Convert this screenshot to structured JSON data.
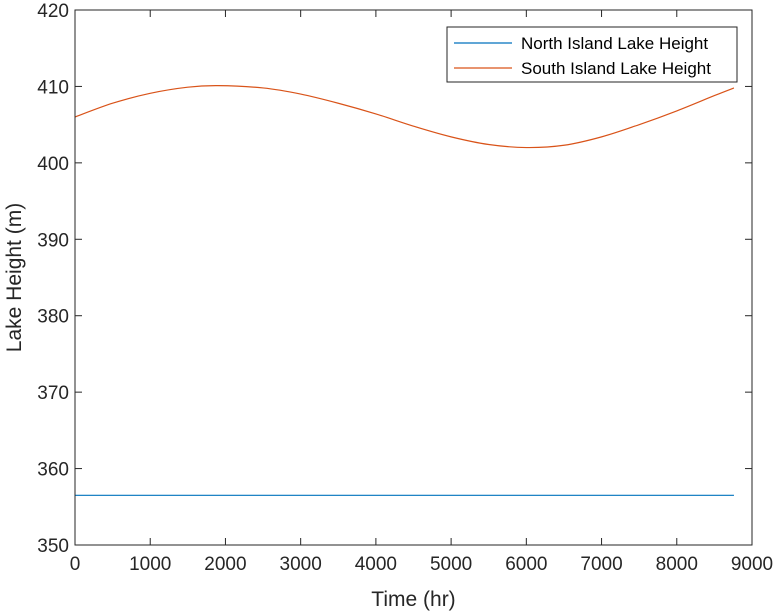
{
  "chart_data": {
    "type": "line",
    "title": "",
    "xlabel": "Time (hr)",
    "ylabel": "Lake Height (m)",
    "xlim": [
      0,
      9000
    ],
    "ylim": [
      350,
      420
    ],
    "xticks": [
      0,
      1000,
      2000,
      3000,
      4000,
      5000,
      6000,
      7000,
      8000,
      9000
    ],
    "yticks": [
      350,
      360,
      370,
      380,
      390,
      400,
      410,
      420
    ],
    "grid": false,
    "legend_position": "top-right",
    "series": [
      {
        "name": "North Island Lake Height",
        "color": "#0072BD",
        "x": [
          0,
          1000,
          2000,
          3000,
          4000,
          5000,
          6000,
          7000,
          8000,
          8760
        ],
        "y": [
          356.5,
          356.5,
          356.5,
          356.5,
          356.5,
          356.5,
          356.5,
          356.5,
          356.5,
          356.5
        ]
      },
      {
        "name": "South Island Lake Height",
        "color": "#D95319",
        "x": [
          0,
          500,
          1000,
          1500,
          1900,
          2500,
          3000,
          3500,
          4000,
          4500,
          5000,
          5500,
          6000,
          6500,
          7000,
          7500,
          8000,
          8500,
          8760
        ],
        "y": [
          406.0,
          407.8,
          409.1,
          409.9,
          410.1,
          409.8,
          409.0,
          407.8,
          406.4,
          404.8,
          403.4,
          402.4,
          402.0,
          402.3,
          403.4,
          405.0,
          406.8,
          408.8,
          409.8
        ]
      }
    ]
  }
}
